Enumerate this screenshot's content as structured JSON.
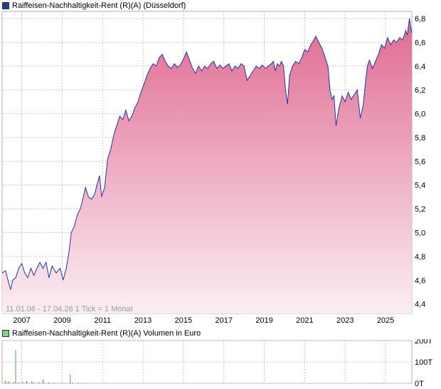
{
  "price_legend": "Raiffeisen-Nachhaltigkeit-Rent (R)(A) (Düsseldorf)",
  "volume_legend": "Raiffeisen-Nachhaltigkeit-Rent (R)(A) Volumen in Euro",
  "range_info": "11.01.06 - 17.04.26",
  "tick_info": "1 Tick = 1 Monat",
  "colors": {
    "line": "#2233aa",
    "fill_top": "#e06a92",
    "fill_bottom": "#fbeef3",
    "grid": "#c8c8c8",
    "price_swatch": "#1c3f94",
    "volume_swatch": "#88cc88",
    "volume_bar": "#cc3333",
    "volume_bar_alt": "#44aa44"
  },
  "chart_data": [
    {
      "type": "area",
      "series": [
        {
          "name": "Raiffeisen-Nachhaltigkeit-Rent (R)(A) (Düsseldorf)",
          "points": [
            [
              2006.03,
              4.66
            ],
            [
              2006.2,
              4.68
            ],
            [
              2006.35,
              4.58
            ],
            [
              2006.45,
              4.52
            ],
            [
              2006.55,
              4.6
            ],
            [
              2006.7,
              4.62
            ],
            [
              2006.85,
              4.7
            ],
            [
              2007.0,
              4.74
            ],
            [
              2007.15,
              4.66
            ],
            [
              2007.3,
              4.62
            ],
            [
              2007.45,
              4.7
            ],
            [
              2007.6,
              4.64
            ],
            [
              2007.75,
              4.7
            ],
            [
              2007.9,
              4.75
            ],
            [
              2008.05,
              4.7
            ],
            [
              2008.2,
              4.75
            ],
            [
              2008.35,
              4.62
            ],
            [
              2008.5,
              4.72
            ],
            [
              2008.7,
              4.66
            ],
            [
              2008.9,
              4.7
            ],
            [
              2009.05,
              4.6
            ],
            [
              2009.2,
              4.7
            ],
            [
              2009.35,
              4.85
            ],
            [
              2009.45,
              5.0
            ],
            [
              2009.6,
              5.05
            ],
            [
              2009.75,
              5.15
            ],
            [
              2009.9,
              5.2
            ],
            [
              2010.05,
              5.3
            ],
            [
              2010.15,
              5.38
            ],
            [
              2010.3,
              5.3
            ],
            [
              2010.45,
              5.28
            ],
            [
              2010.6,
              5.32
            ],
            [
              2010.75,
              5.42
            ],
            [
              2010.85,
              5.48
            ],
            [
              2010.95,
              5.3
            ],
            [
              2011.1,
              5.38
            ],
            [
              2011.25,
              5.62
            ],
            [
              2011.4,
              5.7
            ],
            [
              2011.55,
              5.82
            ],
            [
              2011.7,
              5.9
            ],
            [
              2011.85,
              5.98
            ],
            [
              2012.0,
              5.95
            ],
            [
              2012.15,
              6.03
            ],
            [
              2012.3,
              5.94
            ],
            [
              2012.45,
              5.98
            ],
            [
              2012.6,
              6.05
            ],
            [
              2012.75,
              6.1
            ],
            [
              2012.9,
              6.18
            ],
            [
              2013.05,
              6.25
            ],
            [
              2013.2,
              6.32
            ],
            [
              2013.35,
              6.38
            ],
            [
              2013.5,
              6.42
            ],
            [
              2013.65,
              6.4
            ],
            [
              2013.8,
              6.47
            ],
            [
              2013.95,
              6.5
            ],
            [
              2014.1,
              6.44
            ],
            [
              2014.25,
              6.4
            ],
            [
              2014.4,
              6.38
            ],
            [
              2014.55,
              6.42
            ],
            [
              2014.7,
              6.39
            ],
            [
              2014.85,
              6.41
            ],
            [
              2015.0,
              6.46
            ],
            [
              2015.15,
              6.52
            ],
            [
              2015.3,
              6.45
            ],
            [
              2015.45,
              6.38
            ],
            [
              2015.6,
              6.34
            ],
            [
              2015.75,
              6.4
            ],
            [
              2015.9,
              6.36
            ],
            [
              2016.05,
              6.4
            ],
            [
              2016.2,
              6.38
            ],
            [
              2016.35,
              6.42
            ],
            [
              2016.5,
              6.44
            ],
            [
              2016.65,
              6.38
            ],
            [
              2016.8,
              6.41
            ],
            [
              2016.95,
              6.38
            ],
            [
              2017.1,
              6.4
            ],
            [
              2017.25,
              6.42
            ],
            [
              2017.4,
              6.36
            ],
            [
              2017.55,
              6.4
            ],
            [
              2017.7,
              6.38
            ],
            [
              2017.85,
              6.42
            ],
            [
              2018.0,
              6.4
            ],
            [
              2018.15,
              6.28
            ],
            [
              2018.3,
              6.32
            ],
            [
              2018.45,
              6.36
            ],
            [
              2018.6,
              6.4
            ],
            [
              2018.75,
              6.38
            ],
            [
              2018.9,
              6.41
            ],
            [
              2019.05,
              6.38
            ],
            [
              2019.2,
              6.4
            ],
            [
              2019.35,
              6.42
            ],
            [
              2019.45,
              6.44
            ],
            [
              2019.55,
              6.36
            ],
            [
              2019.65,
              6.42
            ],
            [
              2019.75,
              6.4
            ],
            [
              2019.85,
              6.44
            ],
            [
              2019.95,
              6.4
            ],
            [
              2020.05,
              6.2
            ],
            [
              2020.15,
              6.08
            ],
            [
              2020.25,
              6.32
            ],
            [
              2020.4,
              6.4
            ],
            [
              2020.55,
              6.44
            ],
            [
              2020.7,
              6.42
            ],
            [
              2020.85,
              6.47
            ],
            [
              2021.0,
              6.54
            ],
            [
              2021.15,
              6.52
            ],
            [
              2021.3,
              6.58
            ],
            [
              2021.45,
              6.62
            ],
            [
              2021.55,
              6.65
            ],
            [
              2021.7,
              6.6
            ],
            [
              2021.85,
              6.55
            ],
            [
              2022.0,
              6.48
            ],
            [
              2022.15,
              6.4
            ],
            [
              2022.25,
              6.2
            ],
            [
              2022.35,
              6.12
            ],
            [
              2022.45,
              6.15
            ],
            [
              2022.55,
              5.9
            ],
            [
              2022.7,
              6.05
            ],
            [
              2022.85,
              6.15
            ],
            [
              2023.0,
              6.1
            ],
            [
              2023.15,
              6.18
            ],
            [
              2023.3,
              6.12
            ],
            [
              2023.45,
              6.16
            ],
            [
              2023.6,
              6.2
            ],
            [
              2023.75,
              5.96
            ],
            [
              2023.9,
              6.08
            ],
            [
              2024.0,
              6.25
            ],
            [
              2024.1,
              6.4
            ],
            [
              2024.2,
              6.45
            ],
            [
              2024.35,
              6.38
            ],
            [
              2024.5,
              6.44
            ],
            [
              2024.65,
              6.5
            ],
            [
              2024.8,
              6.58
            ],
            [
              2024.95,
              6.55
            ],
            [
              2025.1,
              6.64
            ],
            [
              2025.25,
              6.58
            ],
            [
              2025.4,
              6.62
            ],
            [
              2025.55,
              6.6
            ],
            [
              2025.7,
              6.64
            ],
            [
              2025.85,
              6.62
            ],
            [
              2026.0,
              6.7
            ],
            [
              2026.08,
              6.66
            ],
            [
              2026.18,
              6.8
            ],
            [
              2026.25,
              6.72
            ],
            [
              2026.3,
              6.68
            ]
          ]
        }
      ],
      "x_tick_labels": [
        "2007",
        "2009",
        "2011",
        "2013",
        "2015",
        "2017",
        "2019",
        "2021",
        "2023",
        "2025"
      ],
      "y_tick_labels": [
        "4,4",
        "4,6",
        "4,8",
        "5,0",
        "5,2",
        "5,4",
        "5,6",
        "5,8",
        "6,0",
        "6,2",
        "6,4",
        "6,6",
        "6,8"
      ],
      "xlim": [
        2006.03,
        2026.3
      ],
      "ylim": [
        4.32,
        6.86
      ],
      "grid": true,
      "y_axis_side": "right"
    },
    {
      "type": "bar",
      "series": [
        {
          "name": "Raiffeisen-Nachhaltigkeit-Rent (R)(A) Volumen in Euro",
          "points": [
            [
              2006.2,
              12
            ],
            [
              2006.35,
              8
            ],
            [
              2006.6,
              5
            ],
            [
              2006.85,
              4
            ],
            [
              2007.05,
              6
            ],
            [
              2007.25,
              10
            ],
            [
              2007.5,
              8
            ],
            [
              2007.6,
              3
            ],
            [
              2007.85,
              5
            ],
            [
              2008.1,
              3
            ],
            [
              2008.35,
              4
            ],
            [
              2008.6,
              3
            ],
            [
              2009.0,
              2
            ],
            [
              2009.5,
              4
            ],
            [
              2009.8,
              3
            ],
            [
              2024.9,
              2
            ]
          ]
        }
      ],
      "highlight_bars": [
        [
          2006.7,
          155
        ],
        [
          2009.4,
          40
        ],
        [
          2008.05,
          18
        ]
      ],
      "y_tick_labels": [
        "0T",
        "100T",
        "200T"
      ],
      "xlim": [
        2006.03,
        2026.3
      ],
      "ylim": [
        0,
        200
      ],
      "grid": true,
      "y_axis_side": "right"
    }
  ]
}
